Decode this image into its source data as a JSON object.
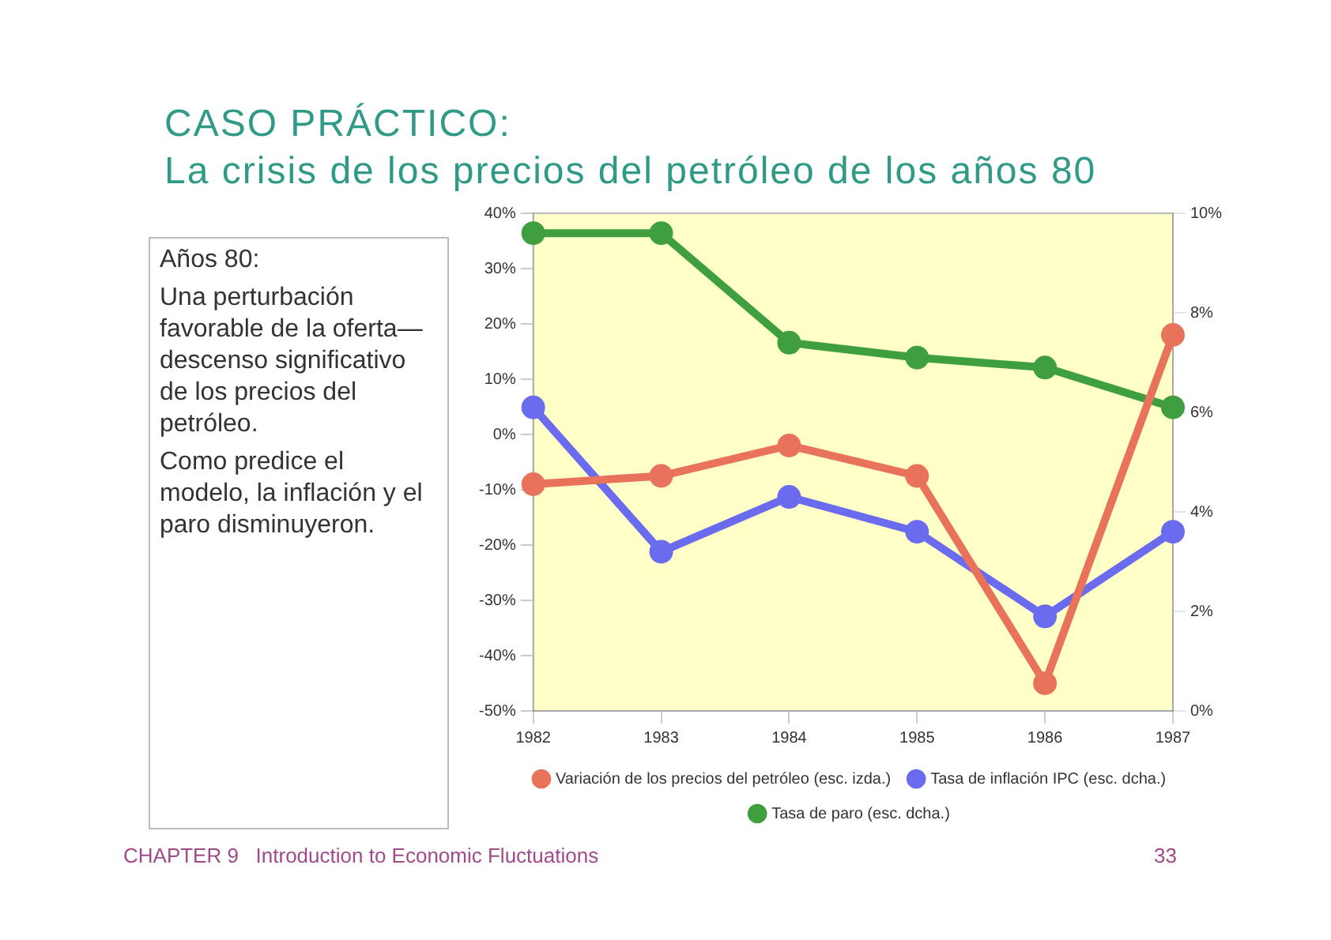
{
  "chart_data": {
    "type": "line",
    "title": "CASO PRÁCTICO:",
    "subtitle": "La crisis de los precios del petróleo de los años 80",
    "categories": [
      "1982",
      "1983",
      "1984",
      "1985",
      "1986",
      "1987"
    ],
    "series": [
      {
        "name": "Variación de los precios del petróleo (esc. izda.)",
        "color": "#e8735a",
        "values": [
          -9,
          -7.5,
          -2,
          -7.5,
          -45,
          18
        ]
      },
      {
        "name": "Tasa de inflación IPC (esc. dcha.)",
        "color": "#6b6bf0",
        "axis": "y2",
        "values": [
          6.1,
          3.2,
          4.3,
          3.6,
          1.9,
          3.6
        ]
      },
      {
        "name": "Tasa de paro (esc. dcha.)",
        "color": "#3f9f3f",
        "axis": "y2",
        "values": [
          9.6,
          9.6,
          7.4,
          7.1,
          6.9,
          6.1
        ]
      }
    ],
    "ylim": [
      -50,
      40
    ],
    "yticks": [
      {
        "value": -50,
        "label": "-50%"
      },
      {
        "value": -40,
        "label": "-40%"
      },
      {
        "value": -30,
        "label": "-30%"
      },
      {
        "value": -20,
        "label": "-20%"
      },
      {
        "value": -10,
        "label": "-10%"
      },
      {
        "value": 0,
        "label": "0%"
      },
      {
        "value": 10,
        "label": "10%"
      },
      {
        "value": 20,
        "label": "20%"
      },
      {
        "value": 30,
        "label": "30%"
      },
      {
        "value": 40,
        "label": "40%"
      }
    ],
    "y2lim": [
      0,
      10
    ],
    "y2ticks": [
      {
        "value": 0,
        "label": "0%"
      },
      {
        "value": 2,
        "label": "2%"
      },
      {
        "value": 4,
        "label": "4%"
      },
      {
        "value": 6,
        "label": "6%"
      },
      {
        "value": 8,
        "label": "8%"
      },
      {
        "value": 10,
        "label": "10%"
      }
    ],
    "grid": false,
    "legend": "bottom",
    "marker": "circle",
    "line_style": "solid",
    "annotations": [
      "Años 80:",
      "Una perturbación favorable de la oferta—descenso significativo de los precios del petróleo.",
      "Como predice el modelo, la inflación y el paro disminuyeron.",
      "CHAPTER 9   Introduction to Economic Fluctuations",
      "33"
    ]
  }
}
